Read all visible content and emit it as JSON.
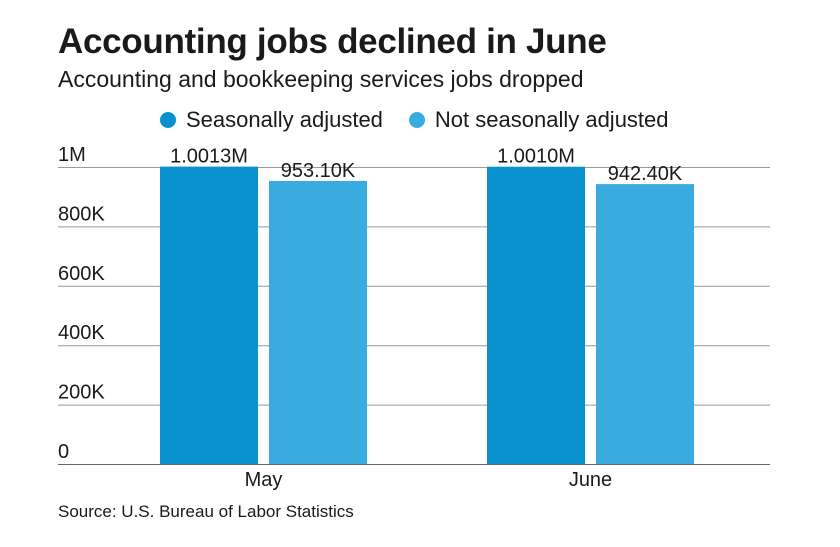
{
  "chart_data": {
    "type": "bar",
    "title": "Accounting jobs declined in June",
    "subtitle": "Accounting and bookkeeping services jobs dropped",
    "categories": [
      "May",
      "June"
    ],
    "series": [
      {
        "name": "Seasonally adjusted",
        "color": "#0a91cf",
        "values": [
          1001300,
          1001000
        ],
        "labels": [
          "1.0013M",
          "1.0010M"
        ]
      },
      {
        "name": "Not seasonally adjusted",
        "color": "#3aabdf",
        "values": [
          953100,
          942400
        ],
        "labels": [
          "953.10K",
          "942.40K"
        ]
      }
    ],
    "yticks": [
      {
        "value": 0,
        "label": "0"
      },
      {
        "value": 200000,
        "label": "200K"
      },
      {
        "value": 400000,
        "label": "400K"
      },
      {
        "value": 600000,
        "label": "600K"
      },
      {
        "value": 800000,
        "label": "800K"
      },
      {
        "value": 1000000,
        "label": "1M"
      }
    ],
    "ylim": [
      0,
      1000000
    ],
    "grid": true,
    "legend_position": "top",
    "source": "Source: U.S. Bureau of Labor Statistics"
  }
}
